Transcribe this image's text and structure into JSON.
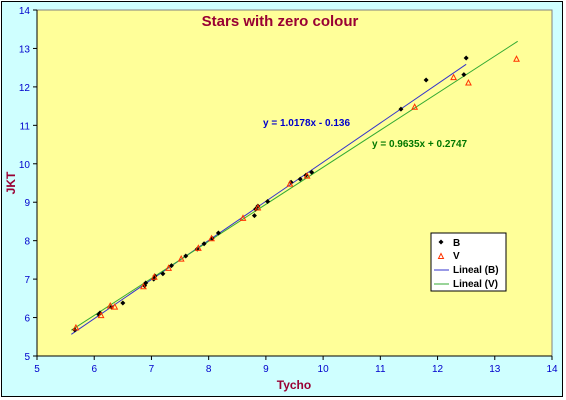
{
  "chart_data": {
    "type": "scatter",
    "title": "Stars with zero colour",
    "xlabel": "Tycho",
    "ylabel": "JKT",
    "xlim": [
      5,
      14
    ],
    "ylim": [
      5,
      14
    ],
    "xticks": [
      "5",
      "6",
      "7",
      "8",
      "9",
      "10",
      "11",
      "12",
      "13",
      "14"
    ],
    "yticks": [
      "5",
      "6",
      "7",
      "8",
      "9",
      "10",
      "11",
      "12",
      "13",
      "14"
    ],
    "grid": false,
    "legend_position": "right",
    "series": [
      {
        "name": "B",
        "marker": "diamond",
        "color": "#000000",
        "points": [
          [
            5.66,
            5.68
          ],
          [
            6.08,
            6.08
          ],
          [
            6.1,
            6.12
          ],
          [
            6.3,
            6.27
          ],
          [
            6.5,
            6.38
          ],
          [
            6.88,
            6.83
          ],
          [
            6.9,
            6.9
          ],
          [
            7.04,
            7.0
          ],
          [
            7.06,
            7.08
          ],
          [
            7.2,
            7.14
          ],
          [
            7.35,
            7.35
          ],
          [
            7.6,
            7.6
          ],
          [
            7.8,
            7.78
          ],
          [
            7.92,
            7.92
          ],
          [
            8.06,
            8.06
          ],
          [
            8.17,
            8.2
          ],
          [
            8.8,
            8.65
          ],
          [
            8.82,
            8.82
          ],
          [
            8.86,
            8.9
          ],
          [
            9.03,
            9.02
          ],
          [
            9.44,
            9.52
          ],
          [
            9.6,
            9.6
          ],
          [
            9.7,
            9.7
          ],
          [
            9.8,
            9.78
          ],
          [
            11.36,
            11.42
          ],
          [
            11.8,
            12.18
          ],
          [
            12.46,
            12.32
          ],
          [
            12.5,
            12.75
          ]
        ]
      },
      {
        "name": "V",
        "marker": "triangle",
        "color": "#ff3300",
        "points": [
          [
            5.68,
            5.73
          ],
          [
            6.12,
            6.05
          ],
          [
            6.28,
            6.3
          ],
          [
            6.36,
            6.27
          ],
          [
            6.86,
            6.8
          ],
          [
            7.05,
            7.05
          ],
          [
            7.3,
            7.28
          ],
          [
            7.52,
            7.52
          ],
          [
            7.82,
            7.8
          ],
          [
            8.05,
            8.05
          ],
          [
            8.6,
            8.58
          ],
          [
            8.86,
            8.85
          ],
          [
            9.42,
            9.47
          ],
          [
            9.72,
            9.68
          ],
          [
            11.6,
            11.47
          ],
          [
            12.28,
            12.24
          ],
          [
            12.54,
            12.1
          ],
          [
            13.38,
            12.72
          ]
        ]
      },
      {
        "name": "Lineal (B)",
        "type": "trendline",
        "color": "#3333cc",
        "slope": 1.0178,
        "intercept": -0.136,
        "x_range": [
          5.6,
          12.5
        ]
      },
      {
        "name": "Lineal (V)",
        "type": "trendline",
        "color": "#33aa33",
        "slope": 0.9635,
        "intercept": 0.2747,
        "x_range": [
          5.6,
          13.4
        ]
      }
    ],
    "annotations": [
      {
        "text": "y = 1.0178x - 0.136",
        "color": "#0000cc"
      },
      {
        "text": "y = 0.9635x + 0.2747",
        "color": "#007700"
      }
    ],
    "plot_background": "#ffff99",
    "chart_background": "#cfffff"
  }
}
